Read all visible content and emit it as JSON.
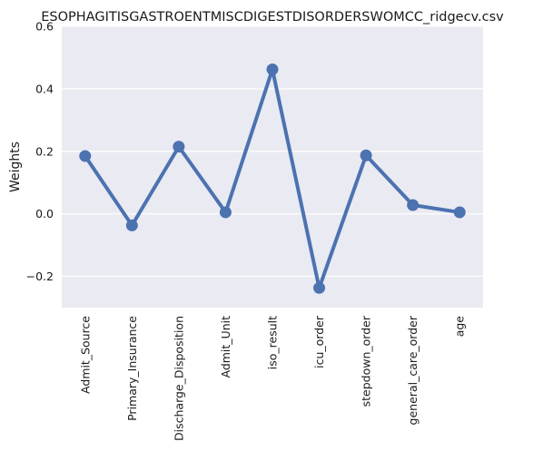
{
  "chart_data": {
    "type": "line",
    "title": "ESOPHAGITISGASTROENTMISCDIGESTDISORDERSWOMCC_ridgecv.csv",
    "xlabel": "",
    "ylabel": "Weights",
    "categories": [
      "Admit_Source",
      "Primary_Insurance",
      "Discharge_Disposition",
      "Admit_Unit",
      "iso_result",
      "icu_order",
      "stepdown_order",
      "general_care_order",
      "age"
    ],
    "series": [
      {
        "values": [
          0.185,
          -0.037,
          0.215,
          0.005,
          0.462,
          -0.237,
          0.187,
          0.028,
          0.005
        ]
      }
    ],
    "yticks": [
      -0.2,
      0.0,
      0.2,
      0.4,
      0.6
    ],
    "ytick_labels": [
      "−0.2",
      "0.0",
      "0.2",
      "0.4",
      "0.6"
    ],
    "ylim": [
      -0.3,
      0.6
    ],
    "grid": true,
    "colors": {
      "background": "#eaeaf2",
      "line": "#4c72b0",
      "grid": "#ffffff"
    }
  }
}
